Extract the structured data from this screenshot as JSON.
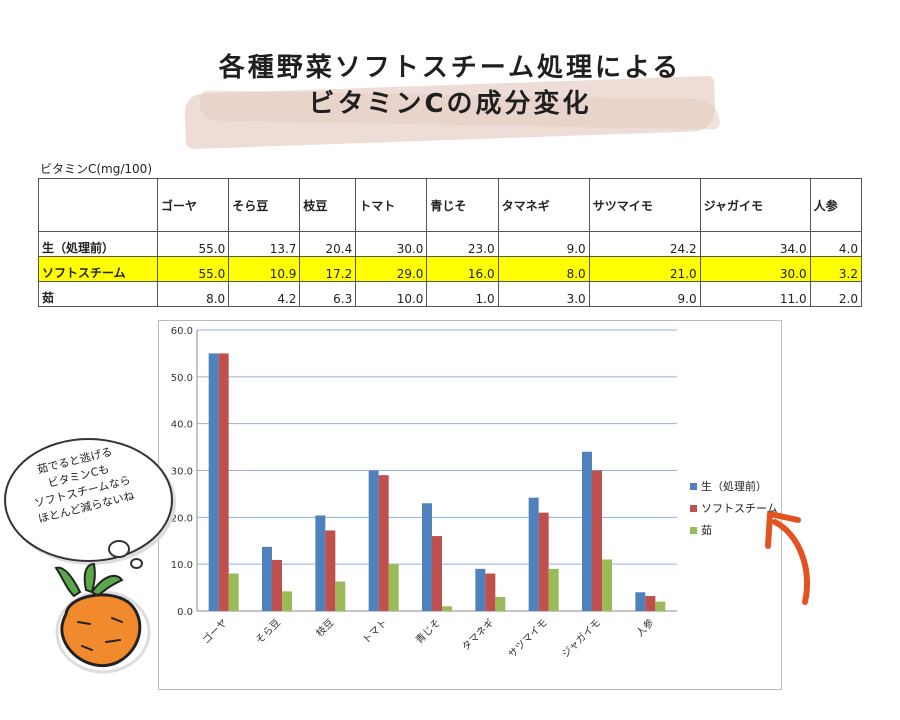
{
  "title": {
    "line1": "各種野菜ソフトスチーム処理による",
    "line2": "ビタミンCの成分変化"
  },
  "table": {
    "unit": "ビタミンC(mg/100)",
    "columns": [
      "ゴーヤ",
      "そら豆",
      "枝豆",
      "トマト",
      "青じそ",
      "タマネギ",
      "サツマイモ",
      "ジャガイモ",
      "人参"
    ],
    "rows": [
      {
        "label": "生（処理前）",
        "values": [
          "55.0",
          "13.7",
          "20.4",
          "30.0",
          "23.0",
          "9.0",
          "24.2",
          "34.0",
          "4.0"
        ]
      },
      {
        "label": "ソフトスチーム",
        "values": [
          "55.0",
          "10.9",
          "17.2",
          "29.0",
          "16.0",
          "8.0",
          "21.0",
          "30.0",
          "3.2"
        ]
      },
      {
        "label": "茹",
        "values": [
          "8.0",
          "4.2",
          "6.3",
          "10.0",
          "1.0",
          "3.0",
          "9.0",
          "11.0",
          "2.0"
        ]
      }
    ]
  },
  "chart_data": {
    "type": "bar",
    "categories": [
      "ゴーヤ",
      "そら豆",
      "枝豆",
      "トマト",
      "青じそ",
      "タマネギ",
      "サツマイモ",
      "ジャガイモ",
      "人参"
    ],
    "series": [
      {
        "name": "生（処理前）",
        "color": "#4f81bd",
        "values": [
          55.0,
          13.7,
          20.4,
          30.0,
          23.0,
          9.0,
          24.2,
          34.0,
          4.0
        ]
      },
      {
        "name": "ソフトスチーム",
        "color": "#c0504d",
        "values": [
          55.0,
          10.9,
          17.2,
          29.0,
          16.0,
          8.0,
          21.0,
          30.0,
          3.2
        ]
      },
      {
        "name": "茹",
        "color": "#9bbb59",
        "values": [
          8.0,
          4.2,
          6.3,
          10.0,
          1.0,
          3.0,
          9.0,
          11.0,
          2.0
        ]
      }
    ],
    "yticks": [
      "0.0",
      "10.0",
      "20.0",
      "30.0",
      "40.0",
      "50.0",
      "60.0"
    ],
    "ylim": [
      0,
      60
    ],
    "grid": true,
    "legend": "right"
  },
  "bubble": {
    "lines": [
      "茹でると逃げる",
      "ビタミンCも",
      "ソフトスチームなら",
      "ほとんど減らないね"
    ]
  },
  "accent": {
    "arrow": "#e4531f",
    "carrot": "#f08a2c",
    "leaf": "#5aa84a",
    "highlight": "#ffff00"
  }
}
